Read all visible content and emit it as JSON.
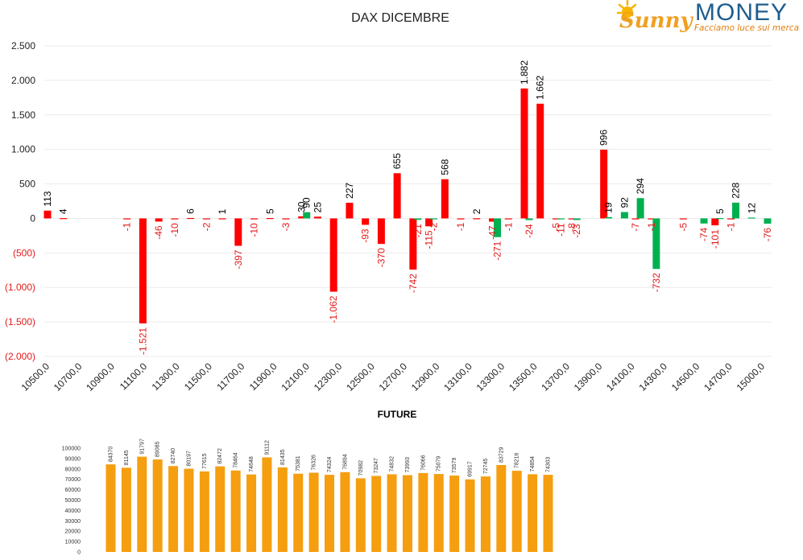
{
  "logo": {
    "name_a": "Sunny",
    "name_b": "MONEY",
    "tagline": "Facciamo luce sui mercati"
  },
  "chart_data": [
    {
      "type": "bar",
      "title": "DAX DICEMBRE",
      "ylim": [
        -2000,
        2500
      ],
      "yticks": [
        {
          "value": 2500,
          "label": "2.500"
        },
        {
          "value": 2000,
          "label": "2.000"
        },
        {
          "value": 1500,
          "label": "1.500"
        },
        {
          "value": 1000,
          "label": "1.000"
        },
        {
          "value": 500,
          "label": "500"
        },
        {
          "value": 0,
          "label": "0"
        },
        {
          "value": -500,
          "label": "(500)"
        },
        {
          "value": -1000,
          "label": "(1.000)"
        },
        {
          "value": -1500,
          "label": "(1.500)"
        },
        {
          "value": -2000,
          "label": "(2.000)"
        }
      ],
      "xticks": [
        "10500,0",
        "10700,0",
        "10900,0",
        "11100,0",
        "11300,0",
        "11500,0",
        "11700,0",
        "11900,0",
        "12100,0",
        "12300,0",
        "12500,0",
        "12700,0",
        "12900,0",
        "13100,0",
        "13300,0",
        "13500,0",
        "13700,0",
        "13900,0",
        "14100,0",
        "14300,0",
        "14500,0",
        "14700,0",
        "15000,0"
      ],
      "grid": true,
      "colors": {
        "calls": "#ff0000",
        "puts": "#00b050",
        "negative_label": "#e31a1a",
        "positive_label": "#000000"
      },
      "series": [
        {
          "color": "#ff0000",
          "points": [
            {
              "strike": 10500,
              "value": 113,
              "label": "113"
            },
            {
              "strike": 10600,
              "value": 4,
              "label": "4"
            },
            {
              "strike": 11000,
              "value": -1,
              "label": "-1"
            },
            {
              "strike": 11100,
              "value": -1521,
              "label": "-1.521"
            },
            {
              "strike": 11200,
              "value": -46,
              "label": "-46"
            },
            {
              "strike": 11300,
              "value": -10,
              "label": "-10"
            },
            {
              "strike": 11400,
              "value": 6,
              "label": "6"
            },
            {
              "strike": 11500,
              "value": -2,
              "label": "-2"
            },
            {
              "strike": 11600,
              "value": 1,
              "label": "1"
            },
            {
              "strike": 11700,
              "value": -397,
              "label": "-397"
            },
            {
              "strike": 11800,
              "value": -10,
              "label": "-10"
            },
            {
              "strike": 11900,
              "value": 5,
              "label": "5"
            },
            {
              "strike": 12000,
              "value": -3,
              "label": "-3"
            },
            {
              "strike": 12100,
              "value": 30,
              "label": "30"
            },
            {
              "strike": 12200,
              "value": 25,
              "label": "25"
            },
            {
              "strike": 12300,
              "value": -1062,
              "label": "-1.062"
            },
            {
              "strike": 12400,
              "value": 227,
              "label": "227"
            },
            {
              "strike": 12500,
              "value": -93,
              "label": "-93"
            },
            {
              "strike": 12600,
              "value": -370,
              "label": "-370"
            },
            {
              "strike": 12700,
              "value": 655,
              "label": "655"
            },
            {
              "strike": 12800,
              "value": -742,
              "label": "-742"
            },
            {
              "strike": 12900,
              "value": -115,
              "label": "-115"
            },
            {
              "strike": 13000,
              "value": 568,
              "label": "568"
            },
            {
              "strike": 13100,
              "value": -1,
              "label": "-1"
            },
            {
              "strike": 13200,
              "value": 2,
              "label": "2"
            },
            {
              "strike": 13300,
              "value": -47,
              "label": "-47"
            },
            {
              "strike": 13400,
              "value": -1,
              "label": "-1"
            },
            {
              "strike": 13500,
              "value": 1882,
              "label": "1.882"
            },
            {
              "strike": 13600,
              "value": 1662,
              "label": "1.662"
            },
            {
              "strike": 13700,
              "value": -5,
              "label": "-5"
            },
            {
              "strike": 13800,
              "value": -8,
              "label": "-8"
            },
            {
              "strike": 14000,
              "value": 996,
              "label": "996"
            },
            {
              "strike": 14200,
              "value": -7,
              "label": "-7"
            },
            {
              "strike": 14300,
              "value": -1,
              "label": "-1"
            },
            {
              "strike": 14500,
              "value": -5,
              "label": "-5"
            },
            {
              "strike": 14700,
              "value": -101,
              "label": "-101"
            },
            {
              "strike": 14800,
              "value": -1,
              "label": "-1"
            }
          ]
        },
        {
          "color": "#00b050",
          "points": [
            {
              "strike": 12100,
              "value": 90,
              "label": "90"
            },
            {
              "strike": 12800,
              "value": -21,
              "label": "-21"
            },
            {
              "strike": 12900,
              "value": -2,
              "label": "-2"
            },
            {
              "strike": 13300,
              "value": -271,
              "label": "-271"
            },
            {
              "strike": 13500,
              "value": -24,
              "label": "-24"
            },
            {
              "strike": 13700,
              "value": -11,
              "label": "-11"
            },
            {
              "strike": 13800,
              "value": -23,
              "label": "-23"
            },
            {
              "strike": 14000,
              "value": 19,
              "label": "19"
            },
            {
              "strike": 14100,
              "value": 92,
              "label": "92"
            },
            {
              "strike": 14200,
              "value": 294,
              "label": "294"
            },
            {
              "strike": 14300,
              "value": -732,
              "label": "-732"
            },
            {
              "strike": 14600,
              "value": -74,
              "label": "-74"
            },
            {
              "strike": 14700,
              "value": 5,
              "label": "5"
            },
            {
              "strike": 14800,
              "value": 228,
              "label": "228"
            },
            {
              "strike": 14900,
              "value": 12,
              "label": "12"
            },
            {
              "strike": 15000,
              "value": -76,
              "label": "-76"
            }
          ]
        }
      ]
    },
    {
      "type": "bar",
      "title": "FUTURE",
      "ylim": [
        0,
        100000
      ],
      "yticks": [
        "100000",
        "90000",
        "80000",
        "70000",
        "60000",
        "50000",
        "40000",
        "30000",
        "20000",
        "10000",
        "0"
      ],
      "color": "#f59e10",
      "values": [
        84370,
        81145,
        91797,
        89085,
        82740,
        80197,
        77615,
        82472,
        78464,
        74648,
        91112,
        81435,
        75381,
        76326,
        74324,
        76894,
        70982,
        73247,
        74832,
        73993,
        76066,
        75079,
        73579,
        69917,
        72745,
        83729,
        78216,
        74854,
        74303
      ],
      "value_labels": [
        "84370",
        "81145",
        "91797",
        "89085",
        "82740",
        "80197",
        "77615",
        "82472",
        "78464",
        "74648",
        "91112",
        "81435",
        "75381",
        "76326",
        "74324",
        "76894",
        "70982",
        "73247",
        "74832",
        "73993",
        "76066",
        "75079",
        "73579",
        "69917",
        "72745",
        "83729",
        "78216",
        "74854",
        "74303"
      ]
    }
  ]
}
